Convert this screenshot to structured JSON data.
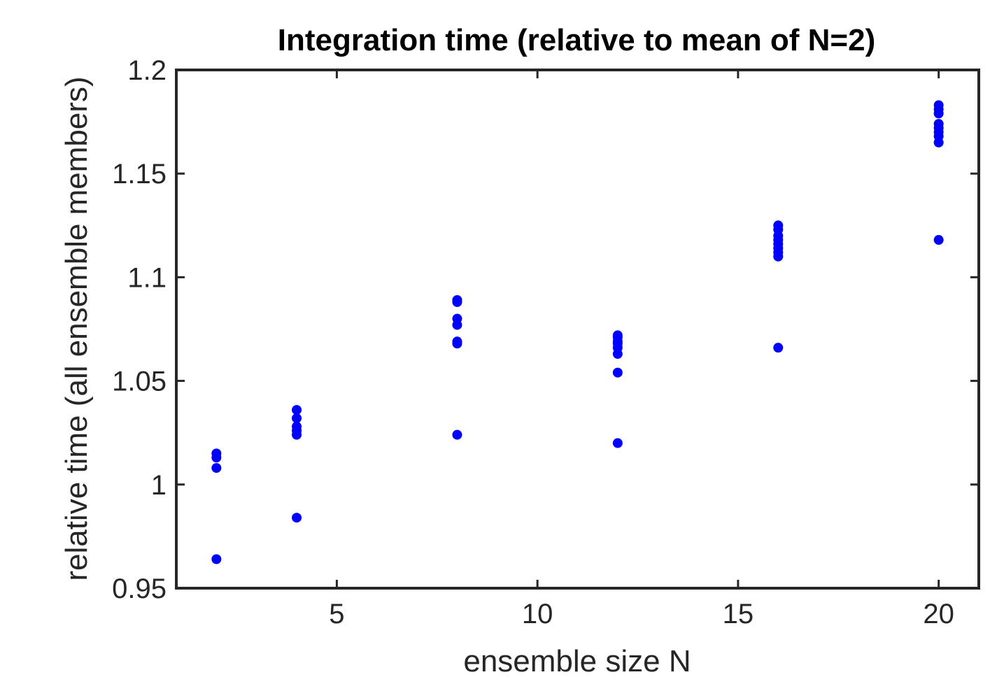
{
  "chart_data": {
    "type": "scatter",
    "title": "Integration time (relative to mean of N=2)",
    "xlabel": "ensemble size N",
    "ylabel": "relative time (all ensemble members)",
    "xlim": [
      1,
      21
    ],
    "ylim": [
      0.95,
      1.2
    ],
    "xticks": [
      5,
      10,
      15,
      20
    ],
    "xtick_labels": [
      "5",
      "10",
      "15",
      "20"
    ],
    "yticks": [
      0.95,
      1.0,
      1.05,
      1.1,
      1.15,
      1.2
    ],
    "ytick_labels": [
      "0.95",
      "1",
      "1.05",
      "1.1",
      "1.15",
      "1.2"
    ],
    "grid": false,
    "marker_color": "#0000ff",
    "axis_color": "#262626",
    "points": [
      {
        "x": 2,
        "y": 1.015
      },
      {
        "x": 2,
        "y": 1.013
      },
      {
        "x": 2,
        "y": 1.008
      },
      {
        "x": 2,
        "y": 0.964
      },
      {
        "x": 4,
        "y": 1.036
      },
      {
        "x": 4,
        "y": 1.032
      },
      {
        "x": 4,
        "y": 1.028
      },
      {
        "x": 4,
        "y": 1.026
      },
      {
        "x": 4,
        "y": 1.024
      },
      {
        "x": 4,
        "y": 0.984
      },
      {
        "x": 8,
        "y": 1.089
      },
      {
        "x": 8,
        "y": 1.088
      },
      {
        "x": 8,
        "y": 1.08
      },
      {
        "x": 8,
        "y": 1.077
      },
      {
        "x": 8,
        "y": 1.069
      },
      {
        "x": 8,
        "y": 1.068
      },
      {
        "x": 8,
        "y": 1.024
      },
      {
        "x": 12,
        "y": 1.072
      },
      {
        "x": 12,
        "y": 1.071
      },
      {
        "x": 12,
        "y": 1.069
      },
      {
        "x": 12,
        "y": 1.068
      },
      {
        "x": 12,
        "y": 1.066
      },
      {
        "x": 12,
        "y": 1.063
      },
      {
        "x": 12,
        "y": 1.054
      },
      {
        "x": 12,
        "y": 1.02
      },
      {
        "x": 16,
        "y": 1.125
      },
      {
        "x": 16,
        "y": 1.123
      },
      {
        "x": 16,
        "y": 1.12
      },
      {
        "x": 16,
        "y": 1.118
      },
      {
        "x": 16,
        "y": 1.116
      },
      {
        "x": 16,
        "y": 1.114
      },
      {
        "x": 16,
        "y": 1.112
      },
      {
        "x": 16,
        "y": 1.11
      },
      {
        "x": 16,
        "y": 1.066
      },
      {
        "x": 20,
        "y": 1.183
      },
      {
        "x": 20,
        "y": 1.181
      },
      {
        "x": 20,
        "y": 1.179
      },
      {
        "x": 20,
        "y": 1.174
      },
      {
        "x": 20,
        "y": 1.172
      },
      {
        "x": 20,
        "y": 1.17
      },
      {
        "x": 20,
        "y": 1.168
      },
      {
        "x": 20,
        "y": 1.165
      },
      {
        "x": 20,
        "y": 1.118
      }
    ]
  }
}
